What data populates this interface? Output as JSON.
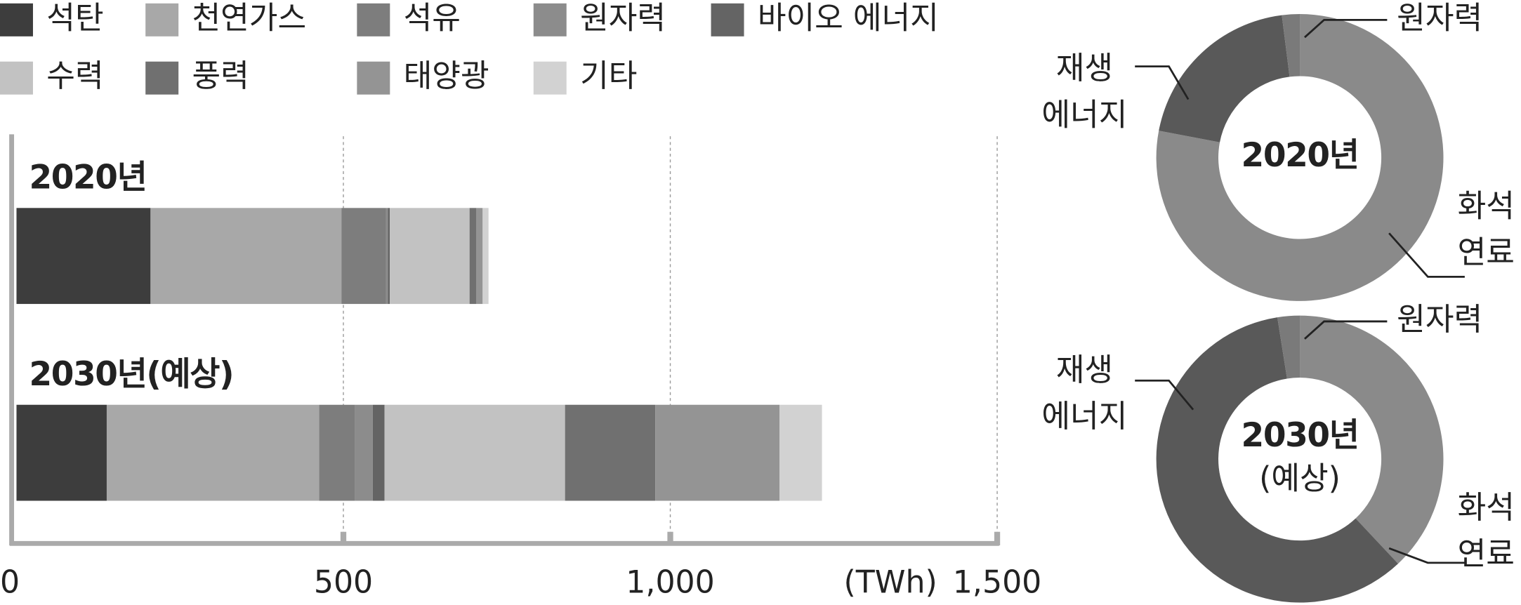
{
  "chart_data": [
    {
      "type": "stacked-barh",
      "categories": [
        "2020년",
        "2030년(예상)"
      ],
      "series": [
        {
          "name": "석탄",
          "color": "#3d3d3d",
          "values": [
            205,
            138
          ]
        },
        {
          "name": "천연가스",
          "color": "#a8a8a8",
          "values": [
            292,
            325
          ]
        },
        {
          "name": "석유",
          "color": "#7d7d7d",
          "values": [
            68,
            55
          ]
        },
        {
          "name": "원자력",
          "color": "#8c8c8c",
          "values": [
            3,
            27
          ]
        },
        {
          "name": "바이오 에너지",
          "color": "#646464",
          "values": [
            3,
            18
          ]
        },
        {
          "name": "수력",
          "color": "#c2c2c2",
          "values": [
            122,
            276
          ]
        },
        {
          "name": "풍력",
          "color": "#707070",
          "values": [
            10,
            138
          ]
        },
        {
          "name": "태양광",
          "color": "#949494",
          "values": [
            10,
            190
          ]
        },
        {
          "name": "기타",
          "color": "#d2d2d2",
          "values": [
            9,
            65
          ]
        }
      ],
      "x_unit": "(TWh)",
      "xlim": [
        0,
        1500
      ],
      "xticks": [
        0,
        500,
        {
          "value": 1000,
          "label": "1,000"
        },
        {
          "value": 1500,
          "label": "1,500"
        }
      ],
      "grid": true
    },
    {
      "type": "donut",
      "center_label": [
        "2020년"
      ],
      "categories": [
        [
          "화석",
          "연료"
        ],
        [
          "재생",
          "에너지"
        ],
        [
          "원자력"
        ]
      ],
      "colors": [
        "#8a8a8a",
        "#595959",
        "#7a7a7a"
      ],
      "values": [
        78,
        20,
        2
      ]
    },
    {
      "type": "donut",
      "center_label": [
        "2030년",
        "(예상)"
      ],
      "categories": [
        [
          "화석",
          "연료"
        ],
        [
          "재생",
          "에너지"
        ],
        [
          "원자력"
        ]
      ],
      "colors": [
        "#8a8a8a",
        "#595959",
        "#7a7a7a"
      ],
      "values": [
        38,
        59.5,
        2.5
      ]
    }
  ]
}
